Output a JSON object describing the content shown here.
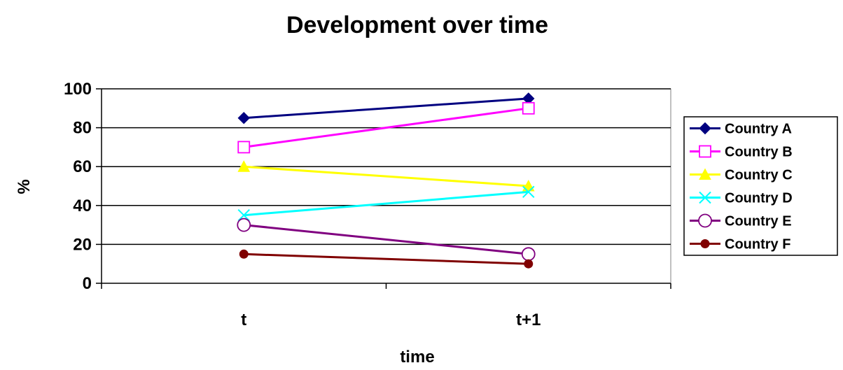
{
  "chart_data": {
    "type": "line",
    "title": "Development over time",
    "xlabel": "time",
    "ylabel": "%",
    "categories": [
      "t",
      "t+1"
    ],
    "ylim": [
      0,
      100
    ],
    "yticks": [
      0,
      20,
      40,
      60,
      80,
      100
    ],
    "grid": true,
    "legend_position": "right",
    "series": [
      {
        "name": "Country A",
        "values": [
          85,
          95
        ],
        "color": "#000080",
        "marker": "diamond"
      },
      {
        "name": "Country B",
        "values": [
          70,
          90
        ],
        "color": "#FF00FF",
        "marker": "square"
      },
      {
        "name": "Country C",
        "values": [
          60,
          50
        ],
        "color": "#FFFF00",
        "marker": "triangle"
      },
      {
        "name": "Country D",
        "values": [
          35,
          47
        ],
        "color": "#00FFFF",
        "marker": "x"
      },
      {
        "name": "Country E",
        "values": [
          30,
          15
        ],
        "color": "#800080",
        "marker": "circle-open"
      },
      {
        "name": "Country F",
        "values": [
          15,
          10
        ],
        "color": "#800000",
        "marker": "circle"
      }
    ]
  }
}
